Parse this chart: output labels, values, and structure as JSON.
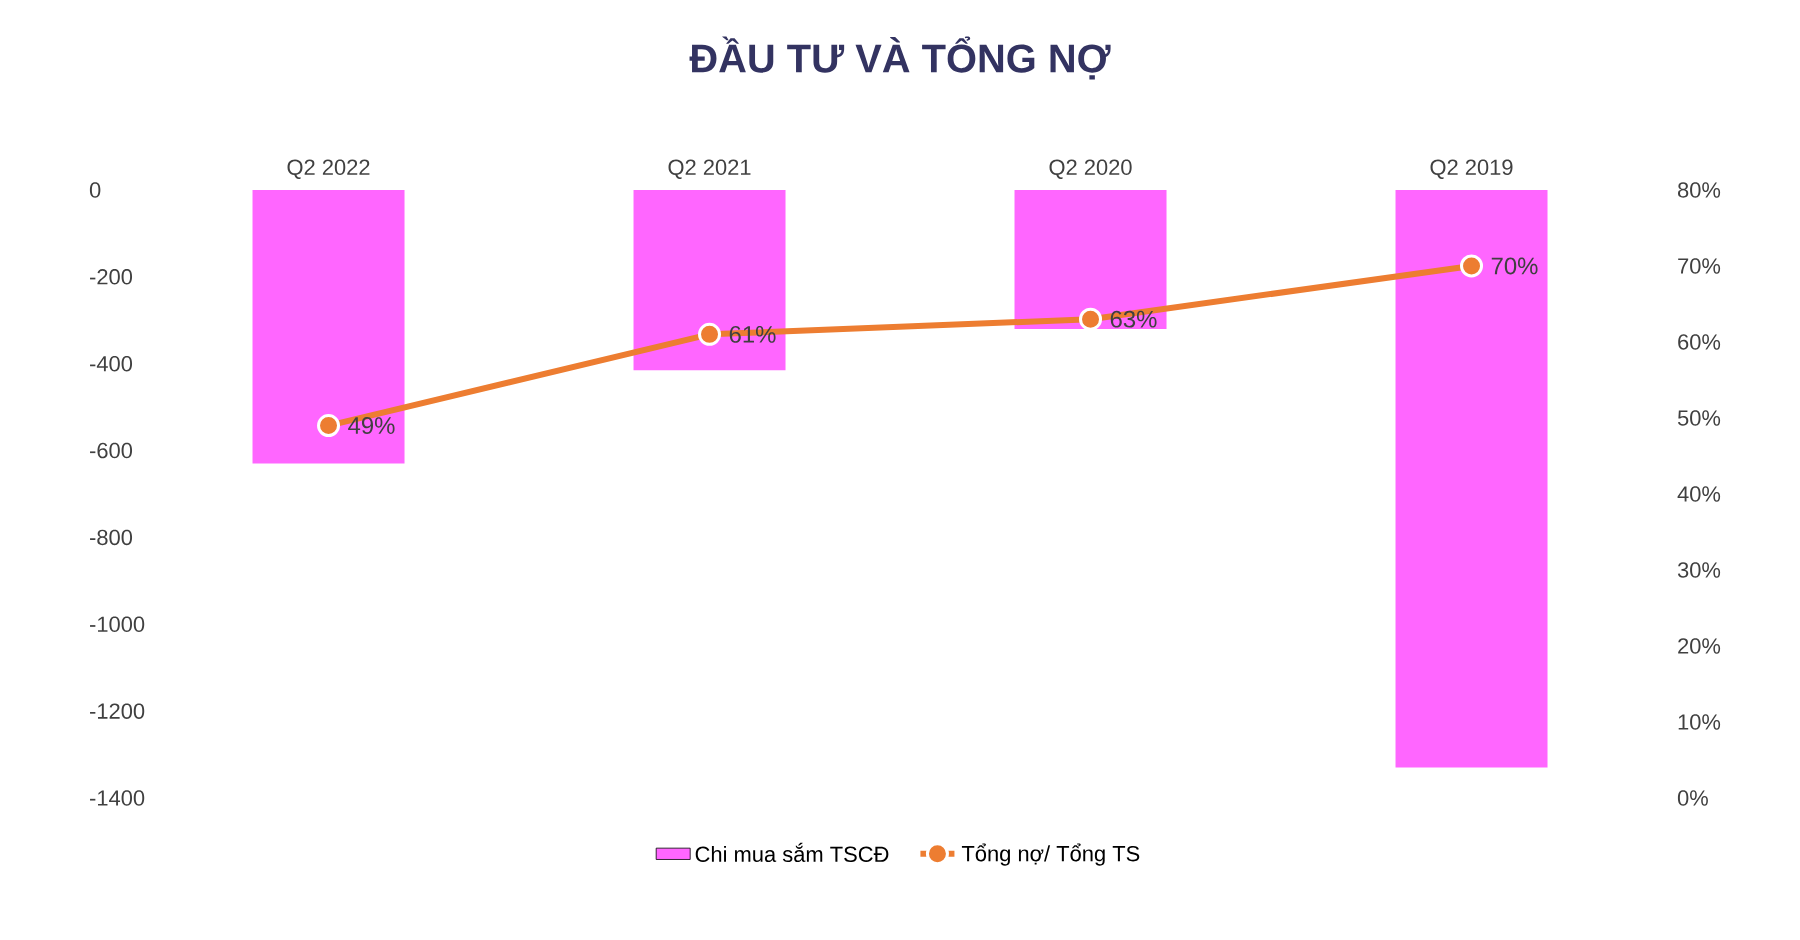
{
  "chart_data": {
    "type": "bar",
    "title": "ĐẦU TƯ VÀ TỔNG NỢ",
    "categories": [
      "Q2 2022",
      "Q2 2021",
      "Q2 2020",
      "Q2 2019"
    ],
    "series": [
      {
        "name": "Chi mua sắm TSCĐ",
        "color": "#ff66ff",
        "values": [
          -630,
          -415,
          -320,
          -1330
        ]
      },
      {
        "name": "Tổng nợ/ Tổng TS",
        "type": "line",
        "axis": "y2",
        "color": "#ed7d31",
        "marker": "circle",
        "values": [
          49,
          61,
          63,
          70
        ],
        "value_labels": [
          "49%",
          "61%",
          "63%",
          "70%"
        ]
      }
    ],
    "ylim": [
      -1400,
      0
    ],
    "yticks": [
      -1400,
      -1200,
      -1000,
      -800,
      -600,
      -400,
      -200,
      0
    ],
    "y2lim": [
      0,
      80
    ],
    "y2ticks": [
      {
        "value": 0,
        "label": "0%"
      },
      {
        "value": 10,
        "label": "10%"
      },
      {
        "value": 20,
        "label": "20%"
      },
      {
        "value": 30,
        "label": "30%"
      },
      {
        "value": 40,
        "label": "40%"
      },
      {
        "value": 50,
        "label": "50%"
      },
      {
        "value": 60,
        "label": "60%"
      },
      {
        "value": 70,
        "label": "70%"
      },
      {
        "value": 80,
        "label": "80%"
      }
    ],
    "grid": false,
    "legend": "bottom"
  }
}
